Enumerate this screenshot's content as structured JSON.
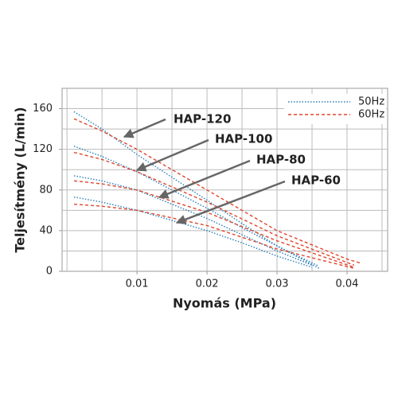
{
  "chart_data": {
    "type": "line",
    "xlabel": "Nyomás (MPa)",
    "ylabel": "Teljesítmény (L/min)",
    "xlim": [
      -0.0007,
      0.0458
    ],
    "ylim": [
      0,
      180
    ],
    "xticks": [
      0.01,
      0.02,
      0.03,
      0.04
    ],
    "yticks": [
      0,
      40,
      80,
      120,
      160
    ],
    "xgrid": [
      0,
      0.005,
      0.01,
      0.015,
      0.02,
      0.025,
      0.03,
      0.035,
      0.04,
      0.045
    ],
    "ygrid": [
      20,
      40,
      60,
      80,
      100,
      120,
      140,
      160
    ],
    "grid": true,
    "legend_position": "upper right",
    "legend": [
      {
        "label": "50Hz",
        "color": "#2a7fb8",
        "dash": "1.5 2"
      },
      {
        "label": "60Hz",
        "color": "#e0452c",
        "dash": "4 3"
      }
    ],
    "annotations": [
      "HAP-120",
      "HAP-100",
      "HAP-80",
      "HAP-60"
    ],
    "series": [
      {
        "legend": 0,
        "x": [
          0.001,
          0.005,
          0.01,
          0.02,
          0.025,
          0.03,
          0.036
        ],
        "values": [
          157,
          140,
          115,
          70,
          47,
          25,
          3
        ]
      },
      {
        "legend": 1,
        "x": [
          0.001,
          0.005,
          0.01,
          0.02,
          0.03,
          0.04,
          0.042
        ],
        "values": [
          150,
          138,
          120,
          80,
          40,
          12,
          8
        ]
      },
      {
        "legend": 0,
        "x": [
          0.001,
          0.005,
          0.01,
          0.02,
          0.025,
          0.03,
          0.036
        ],
        "values": [
          123,
          113,
          98,
          62,
          43,
          25,
          5
        ]
      },
      {
        "legend": 1,
        "x": [
          0.001,
          0.005,
          0.01,
          0.02,
          0.03,
          0.041
        ],
        "values": [
          117,
          110,
          98,
          68,
          35,
          6
        ]
      },
      {
        "legend": 0,
        "x": [
          0.001,
          0.005,
          0.01,
          0.02,
          0.025,
          0.03,
          0.035
        ],
        "values": [
          94,
          89,
          80,
          52,
          36,
          20,
          6
        ]
      },
      {
        "legend": 1,
        "x": [
          0.001,
          0.005,
          0.01,
          0.02,
          0.03,
          0.041
        ],
        "values": [
          89,
          86,
          80,
          58,
          30,
          4
        ]
      },
      {
        "legend": 0,
        "x": [
          0.001,
          0.005,
          0.01,
          0.02,
          0.025,
          0.03,
          0.035
        ],
        "values": [
          73,
          68,
          60,
          40,
          28,
          15,
          4
        ]
      },
      {
        "legend": 1,
        "x": [
          0.001,
          0.005,
          0.01,
          0.02,
          0.03,
          0.041
        ],
        "values": [
          66,
          64,
          60,
          45,
          22,
          3
        ]
      }
    ]
  }
}
